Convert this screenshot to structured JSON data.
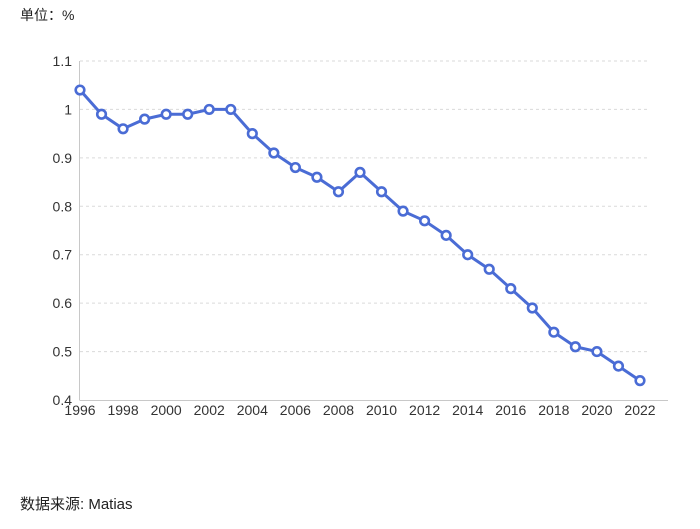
{
  "page": {
    "background": "#ffffff"
  },
  "header": {
    "unit_label": "单位：%"
  },
  "footer": {
    "source_label": "数据来源: Matias"
  },
  "chart_data": {
    "type": "line",
    "title": "",
    "unit": "%",
    "x": [
      1996,
      1997,
      1998,
      1999,
      2000,
      2001,
      2002,
      2003,
      2004,
      2005,
      2006,
      2007,
      2008,
      2009,
      2010,
      2011,
      2012,
      2013,
      2014,
      2015,
      2016,
      2017,
      2018,
      2019,
      2020,
      2021,
      2022
    ],
    "values": [
      1.04,
      0.99,
      0.96,
      0.98,
      0.99,
      0.99,
      1.0,
      1.0,
      0.95,
      0.91,
      0.88,
      0.86,
      0.83,
      0.87,
      0.83,
      0.79,
      0.77,
      0.74,
      0.7,
      0.67,
      0.63,
      0.59,
      0.54,
      0.51,
      0.5,
      0.47,
      0.44
    ],
    "xlim": [
      1996,
      2022
    ],
    "ylim": [
      0.4,
      1.1
    ],
    "x_tick_years": [
      1996,
      1998,
      2000,
      2002,
      2004,
      2006,
      2008,
      2010,
      2012,
      2014,
      2016,
      2018,
      2020,
      2022
    ],
    "y_ticks": [
      1.1,
      1.0,
      0.9,
      0.8,
      0.7,
      0.6,
      0.5,
      0.4
    ],
    "y_tick_labels": [
      "1.1",
      "1",
      "0.9",
      "0.8",
      "0.7",
      "0.6",
      "0.5",
      "0.4"
    ],
    "grid": "horizontal-dashed",
    "legend": "none",
    "line_color": "#4a6cd5",
    "marker_fill": "#ffffff",
    "grid_color": "#dadada",
    "spine_color": "#c8c8c8",
    "tick_color": "#333333"
  }
}
